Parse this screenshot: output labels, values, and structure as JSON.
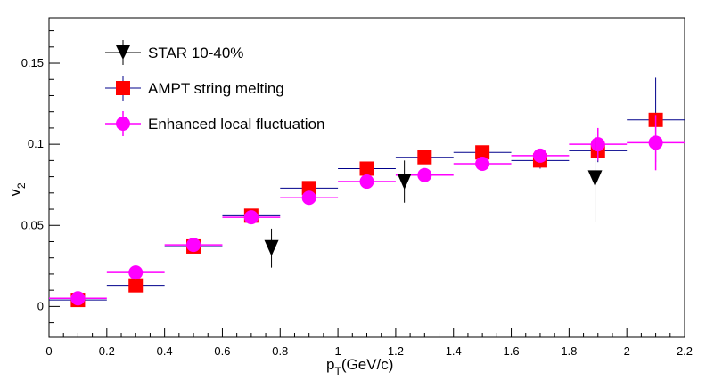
{
  "chart_data": {
    "type": "scatter",
    "xlabel": {
      "main": "p",
      "sub": "T",
      "rest": "(GeV/c)"
    },
    "ylabel": {
      "main": "v",
      "sub": "2"
    },
    "xlim": [
      0,
      2.2
    ],
    "ylim": [
      -0.019,
      0.178
    ],
    "xticks": [
      0,
      0.2,
      0.4,
      0.6,
      0.8,
      1,
      1.2,
      1.4,
      1.6,
      1.8,
      2,
      2.2
    ],
    "xtick_labels": [
      "0",
      "0.2",
      "0.4",
      "0.6",
      "0.8",
      "1",
      "1.2",
      "1.4",
      "1.6",
      "1.8",
      "2",
      "2.2"
    ],
    "yticks": [
      0,
      0.05,
      0.1,
      0.15
    ],
    "ytick_labels": [
      "0",
      "0.05",
      "0.1",
      "0.15"
    ],
    "legend_position": "top-left",
    "grid": false,
    "series": [
      {
        "name": "STAR 10-40%",
        "marker": "triangle-down",
        "color": "#000000",
        "line_color": "#000000",
        "points": [
          {
            "x": 0.77,
            "y": 0.036,
            "xerr": 0,
            "yerr": 0.012
          },
          {
            "x": 1.23,
            "y": 0.077,
            "xerr": 0,
            "yerr": 0.013
          },
          {
            "x": 1.89,
            "y": 0.079,
            "xerr": 0,
            "yerr": 0.027
          }
        ]
      },
      {
        "name": "AMPT string melting",
        "marker": "square",
        "color": "#ff0000",
        "line_color": "#00008b",
        "points": [
          {
            "x": 0.1,
            "y": 0.004,
            "xerr": 0.1,
            "yerr": 0.002
          },
          {
            "x": 0.3,
            "y": 0.013,
            "xerr": 0.1,
            "yerr": 0.002
          },
          {
            "x": 0.5,
            "y": 0.037,
            "xerr": 0.1,
            "yerr": 0.002
          },
          {
            "x": 0.7,
            "y": 0.056,
            "xerr": 0.1,
            "yerr": 0.002
          },
          {
            "x": 0.9,
            "y": 0.073,
            "xerr": 0.1,
            "yerr": 0.003
          },
          {
            "x": 1.1,
            "y": 0.085,
            "xerr": 0.1,
            "yerr": 0.003
          },
          {
            "x": 1.3,
            "y": 0.092,
            "xerr": 0.1,
            "yerr": 0.004
          },
          {
            "x": 1.5,
            "y": 0.095,
            "xerr": 0.1,
            "yerr": 0.004
          },
          {
            "x": 1.7,
            "y": 0.09,
            "xerr": 0.1,
            "yerr": 0.005
          },
          {
            "x": 1.9,
            "y": 0.096,
            "xerr": 0.1,
            "yerr": 0.007
          },
          {
            "x": 2.1,
            "y": 0.115,
            "xerr": 0.1,
            "yerr": 0.026
          }
        ]
      },
      {
        "name": "Enhanced local fluctuation",
        "marker": "circle",
        "color": "#ff00ff",
        "line_color": "#ff00ff",
        "points": [
          {
            "x": 0.1,
            "y": 0.005,
            "xerr": 0.1,
            "yerr": 0.002
          },
          {
            "x": 0.3,
            "y": 0.021,
            "xerr": 0.1,
            "yerr": 0.002
          },
          {
            "x": 0.5,
            "y": 0.038,
            "xerr": 0.1,
            "yerr": 0.002
          },
          {
            "x": 0.7,
            "y": 0.055,
            "xerr": 0.1,
            "yerr": 0.002
          },
          {
            "x": 0.9,
            "y": 0.067,
            "xerr": 0.1,
            "yerr": 0.002
          },
          {
            "x": 1.1,
            "y": 0.077,
            "xerr": 0.1,
            "yerr": 0.002
          },
          {
            "x": 1.3,
            "y": 0.081,
            "xerr": 0.1,
            "yerr": 0.003
          },
          {
            "x": 1.5,
            "y": 0.088,
            "xerr": 0.1,
            "yerr": 0.003
          },
          {
            "x": 1.7,
            "y": 0.093,
            "xerr": 0.1,
            "yerr": 0.004
          },
          {
            "x": 1.9,
            "y": 0.1,
            "xerr": 0.1,
            "yerr": 0.01
          },
          {
            "x": 2.1,
            "y": 0.101,
            "xerr": 0.1,
            "yerr": 0.017
          }
        ]
      }
    ]
  }
}
